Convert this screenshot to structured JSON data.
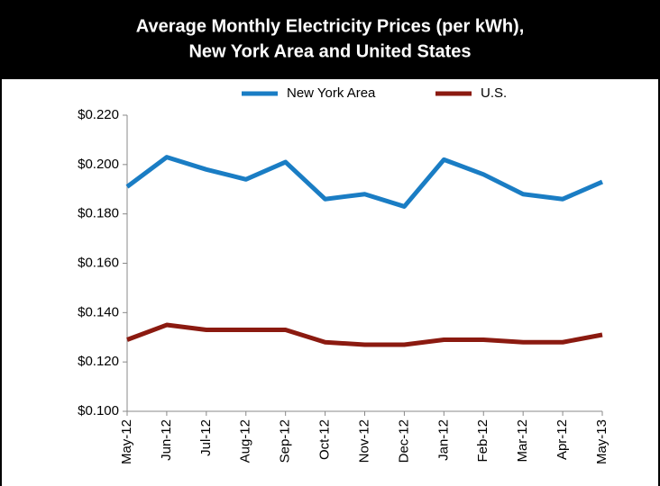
{
  "chart_data": {
    "type": "line",
    "title": [
      "Average Monthly Electricity Prices (per kWh),",
      "New York Area and United States"
    ],
    "categories": [
      "May-12",
      "Jun-12",
      "Jul-12",
      "Aug-12",
      "Sep-12",
      "Oct-12",
      "Nov-12",
      "Dec-12",
      "Jan-12",
      "Feb-12",
      "Mar-12",
      "Apr-12",
      "May-13"
    ],
    "series": [
      {
        "name": "New York Area",
        "color": "#1a7dc4",
        "values": [
          0.191,
          0.203,
          0.198,
          0.194,
          0.201,
          0.186,
          0.188,
          0.183,
          0.202,
          0.196,
          0.188,
          0.186,
          0.193
        ]
      },
      {
        "name": "U.S.",
        "color": "#8b1a10",
        "values": [
          0.129,
          0.135,
          0.133,
          0.133,
          0.133,
          0.128,
          0.127,
          0.127,
          0.129,
          0.129,
          0.128,
          0.128,
          0.131
        ]
      }
    ],
    "ylim": [
      0.1,
      0.22
    ],
    "yticks": [
      {
        "value": 0.1,
        "label": "$0.100"
      },
      {
        "value": 0.12,
        "label": "$0.120"
      },
      {
        "value": 0.14,
        "label": "$0.140"
      },
      {
        "value": 0.16,
        "label": "$0.160"
      },
      {
        "value": 0.18,
        "label": "$0.180"
      },
      {
        "value": 0.2,
        "label": "$0.200"
      },
      {
        "value": 0.22,
        "label": "$0.220"
      }
    ],
    "legend": "top"
  }
}
